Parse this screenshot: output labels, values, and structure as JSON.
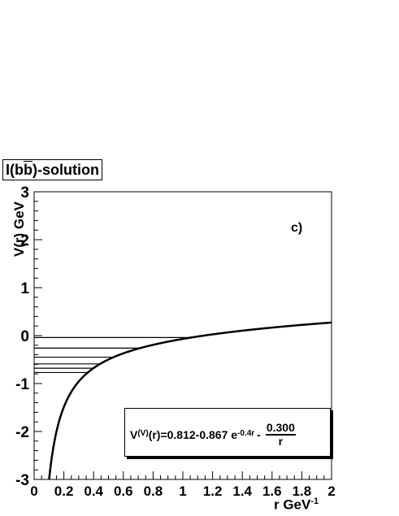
{
  "title": {
    "prefix": "I(b",
    "bbar": "b",
    "suffix": ")-solution"
  },
  "panel_label": "c)",
  "ylabel": "V(r) GeV",
  "xlabel": {
    "base": "r  GeV",
    "exp": "-1"
  },
  "formula": {
    "lhs_base": "V",
    "lhs_sup": "(V)",
    "lhs_tail": "(r)=0.812-0.867 e",
    "exp_sup": "-0.4r",
    "minus": "- ",
    "frac_num": "0.300",
    "frac_den": "r"
  },
  "chart_data": {
    "type": "line",
    "xlim": [
      0,
      2
    ],
    "ylim": [
      -3,
      3
    ],
    "x_ticks": [
      "0",
      "0.2",
      "0.4",
      "0.6",
      "0.8",
      "1",
      "1.2",
      "1.4",
      "1.6",
      "1.8",
      "2"
    ],
    "y_ticks": [
      "-3",
      "-2",
      "-1",
      "0",
      "1",
      "2",
      "3"
    ],
    "potential": {
      "a": 0.812,
      "b": 0.867,
      "k": 0.4,
      "c": 0.3,
      "r_min": 0.1,
      "r_max": 2.0
    },
    "energy_levels": [
      -0.04,
      -0.26,
      -0.45,
      -0.59,
      -0.68,
      -0.77
    ]
  }
}
